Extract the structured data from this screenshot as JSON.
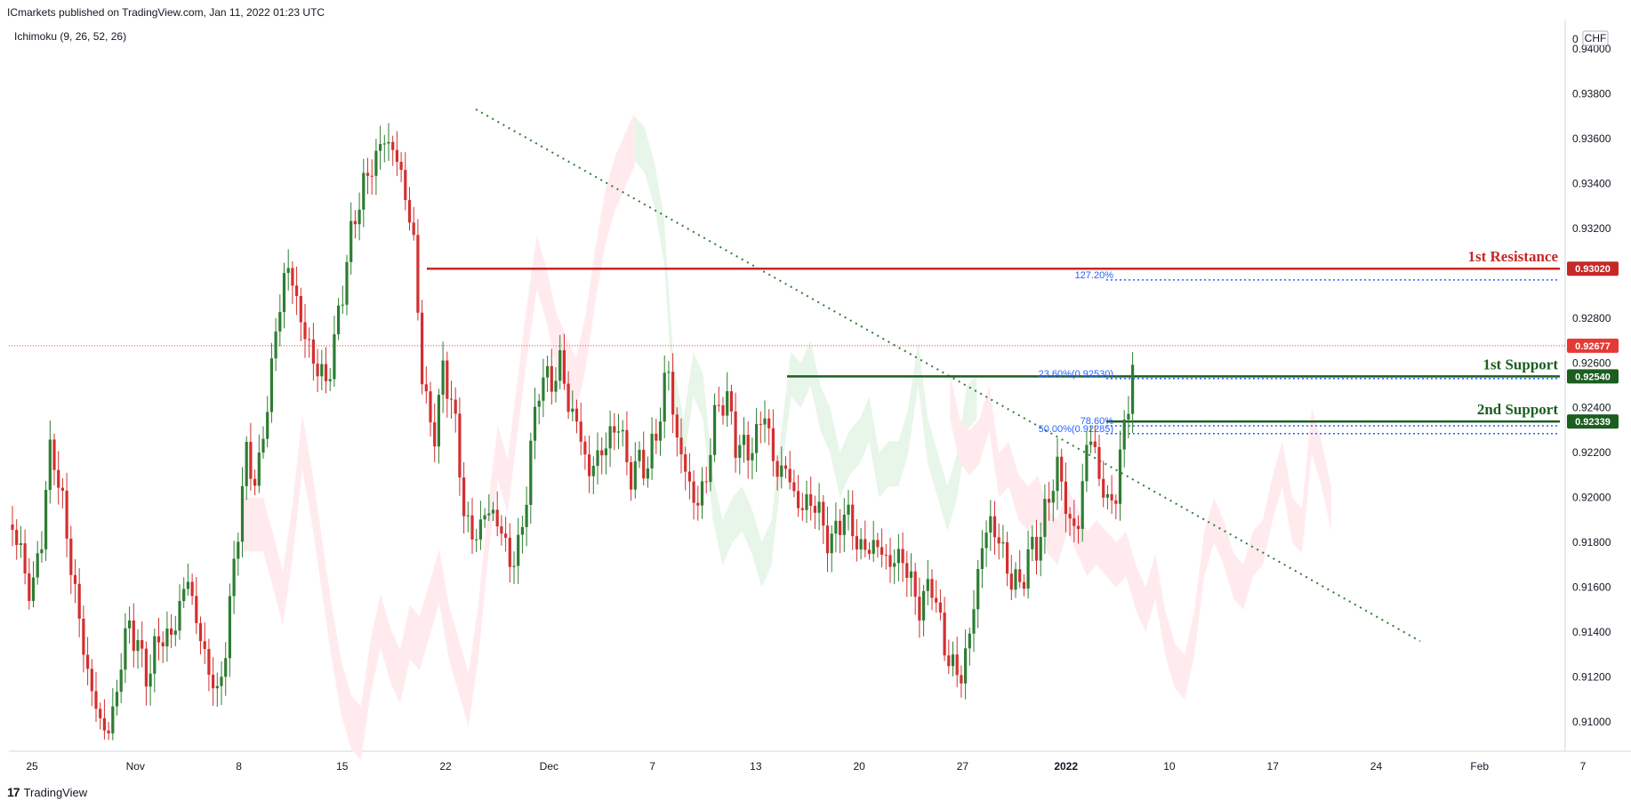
{
  "header": {
    "published": "ICmarkets published on TradingView.com, Jan 11, 2022 01:23 UTC"
  },
  "indicator": {
    "label": "Ichimoku (9, 26, 52, 26)"
  },
  "axis": {
    "currency": "CHF",
    "zero_label": "0"
  },
  "footer": {
    "logo": "17",
    "brand": "TradingView"
  },
  "colors": {
    "bull": "#2e7d32",
    "bear": "#d32f2f",
    "resistance": "#c62828",
    "support": "#1b5e20",
    "fib": "#2962ff",
    "trend": "#2e7d32",
    "cloud_bull": "#e8f5e9",
    "cloud_bear": "#ffebee",
    "last_price": "#e53935"
  },
  "chart_data": {
    "type": "candlestick",
    "symbol_currency": "CHF",
    "ylim": [
      0.9087,
      0.9413
    ],
    "y_ticks": [
      "0.94000",
      "0.93800",
      "0.93600",
      "0.93400",
      "0.93200",
      "0.92800",
      "0.92600",
      "0.92400",
      "0.92200",
      "0.92000",
      "0.91800",
      "0.91600",
      "0.91400",
      "0.91200",
      "0.91000"
    ],
    "x_ticks": [
      "25",
      "Nov",
      "8",
      "15",
      "22",
      "Dec",
      "7",
      "13",
      "20",
      "27",
      "2022",
      "10",
      "17",
      "24",
      "Feb",
      "7"
    ],
    "last_price": {
      "value": 0.92677,
      "label": "0.92677"
    },
    "levels": [
      {
        "name": "1st Resistance",
        "price": 0.9302,
        "label": "0.93020",
        "role": "resistance"
      },
      {
        "name": "1st Support",
        "price": 0.9254,
        "label": "0.92540",
        "role": "support"
      },
      {
        "name": "2nd Support",
        "price": 0.92339,
        "label": "0.92339",
        "role": "support"
      }
    ],
    "fibonacci": [
      {
        "label": "127.20%",
        "price": 0.9297
      },
      {
        "label": "23.60%(0.92530)",
        "price": 0.9253
      },
      {
        "label": "78.60%",
        "price": 0.9232
      },
      {
        "label": "50.00%(0.92285)",
        "price": 0.92285
      }
    ],
    "trendline": {
      "from_price": 0.9373,
      "to_price": 0.9136
    },
    "price_path": [
      0.9188,
      0.9172,
      0.9155,
      0.9185,
      0.9225,
      0.92,
      0.917,
      0.914,
      0.9115,
      0.91,
      0.9095,
      0.9125,
      0.9145,
      0.913,
      0.912,
      0.914,
      0.9135,
      0.915,
      0.9165,
      0.914,
      0.9125,
      0.911,
      0.914,
      0.9185,
      0.922,
      0.9205,
      0.924,
      0.9275,
      0.9305,
      0.929,
      0.927,
      0.926,
      0.925,
      0.927,
      0.93,
      0.9325,
      0.934,
      0.935,
      0.936,
      0.9355,
      0.934,
      0.9315,
      0.925,
      0.9225,
      0.9255,
      0.9245,
      0.92,
      0.918,
      0.919,
      0.9195,
      0.9185,
      0.917,
      0.918,
      0.922,
      0.9255,
      0.925,
      0.926,
      0.924,
      0.923,
      0.921,
      0.922,
      0.9225,
      0.9235,
      0.921,
      0.9215,
      0.9215,
      0.923,
      0.926,
      0.9225,
      0.921,
      0.9195,
      0.921,
      0.924,
      0.9245,
      0.9225,
      0.922,
      0.9225,
      0.924,
      0.921,
      0.9215,
      0.92,
      0.9195,
      0.92,
      0.9185,
      0.918,
      0.9195,
      0.9185,
      0.9175,
      0.918,
      0.9175,
      0.917,
      0.9175,
      0.916,
      0.915,
      0.9165,
      0.914,
      0.9125,
      0.912,
      0.914,
      0.9175,
      0.919,
      0.918,
      0.9165,
      0.916,
      0.9175,
      0.918,
      0.92,
      0.9215,
      0.919,
      0.9185,
      0.923,
      0.9215,
      0.9195,
      0.9205,
      0.924,
      0.927
    ]
  }
}
